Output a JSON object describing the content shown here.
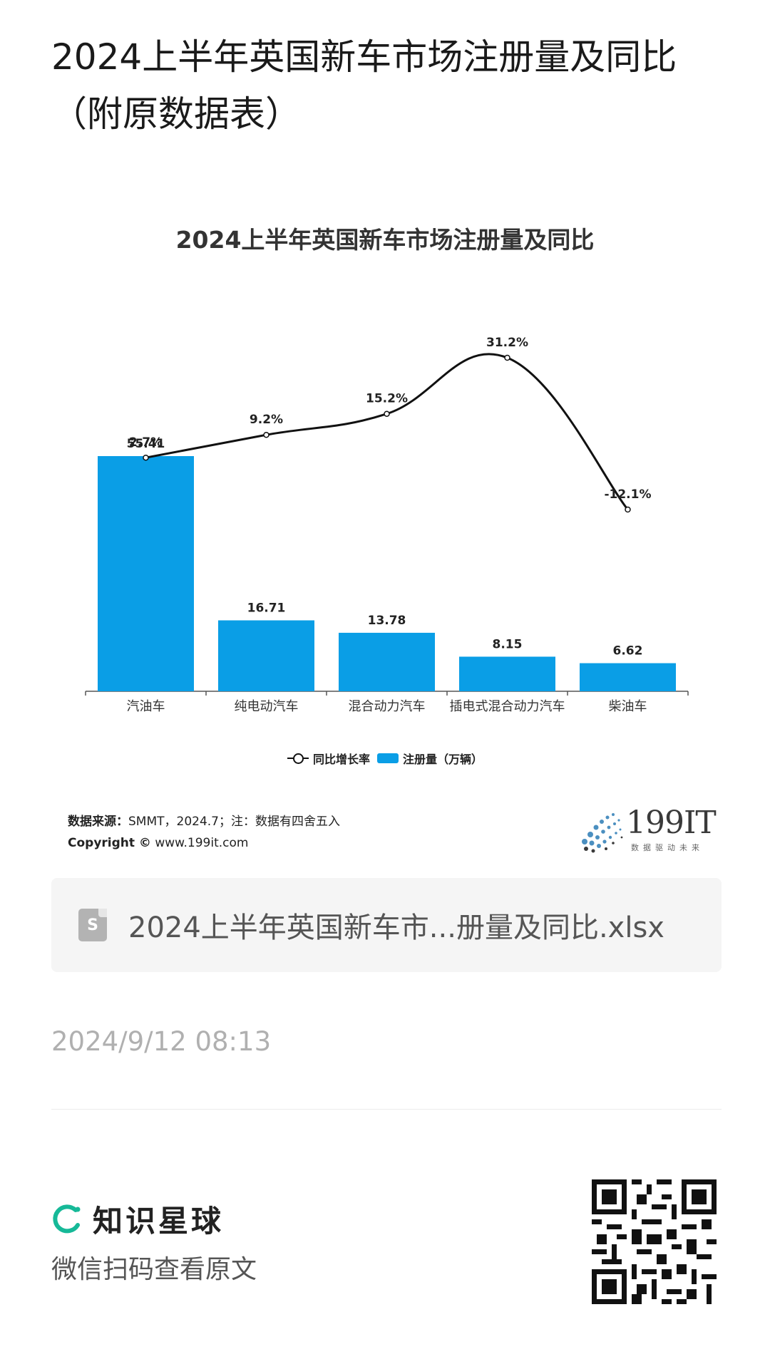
{
  "post": {
    "title": "2024上半年英国新车市场注册量及同比（附原数据表）",
    "time": "2024/9/12 08:13"
  },
  "chart_data": {
    "type": "bar",
    "title": "2024上半年英国新车市场注册量及同比",
    "categories": [
      "汽油车",
      "纯电动汽车",
      "混合动力汽车",
      "插电式混合动力汽车",
      "柴油车"
    ],
    "series": [
      {
        "name": "注册量（万辆）",
        "type": "bar",
        "values": [
          55.41,
          16.71,
          13.78,
          8.15,
          6.62
        ],
        "labels": [
          "55.41",
          "16.71",
          "13.78",
          "8.15",
          "6.62"
        ],
        "color": "#0a9ee6"
      },
      {
        "name": "同比增长率",
        "type": "line",
        "values": [
          2.7,
          9.2,
          15.2,
          31.2,
          -12.1
        ],
        "labels": [
          "2.7%",
          "9.2%",
          "15.2%",
          "31.2%",
          "-12.1%"
        ],
        "color": "#111111"
      }
    ],
    "legend_position": "bottom",
    "grid": false
  },
  "legend": {
    "line_label": "同比增长率",
    "bar_label": "注册量（万辆）"
  },
  "source": {
    "label": "数据来源：",
    "text": "SMMT，2024.7；注：数据有四舍五入",
    "copyright_label": "Copyright ©",
    "copyright_url": "www.199it.com"
  },
  "brand": {
    "name": "199IT",
    "tagline": "数据驱动未来"
  },
  "attachment": {
    "icon_letter": "S",
    "filename": "2024上半年英国新车市...册量及同比.xlsx"
  },
  "footer": {
    "planet_name": "知识星球",
    "scan_hint": "微信扫码查看原文",
    "accent_color": "#16b998"
  }
}
